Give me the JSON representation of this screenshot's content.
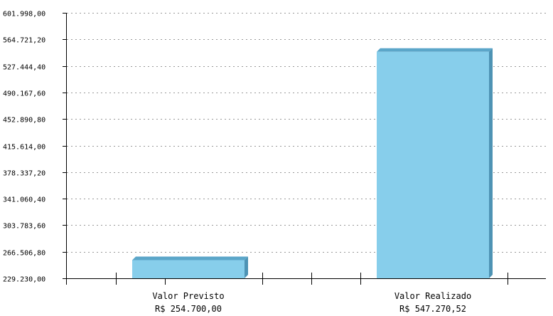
{
  "chart_data": {
    "type": "bar",
    "categories": [
      "Valor Previsto",
      "Valor Realizado"
    ],
    "category_sublabels": [
      "R$ 254.700,00",
      "R$ 547.270,52"
    ],
    "values": [
      254700.0,
      547270.52
    ],
    "y_tick_labels": [
      "229.230,00",
      "266.506,80",
      "303.783,60",
      "341.060,40",
      "378.337,20",
      "415.614,00",
      "452.890,80",
      "490.167,60",
      "527.444,40",
      "564.721,20",
      "601.998,00"
    ],
    "y_ticks": [
      229230.0,
      266506.8,
      303783.6,
      341060.4,
      378337.2,
      415614.0,
      452890.8,
      490167.6,
      527444.4,
      564721.2,
      601998.0
    ],
    "ylim": [
      229230.0,
      601998.0
    ],
    "grid": true,
    "colors": {
      "bar_front": "#87ceeb",
      "bar_top": "#5ba6c9",
      "bar_side": "#4e93b4",
      "grid": "#999999",
      "axis": "#000000"
    }
  }
}
